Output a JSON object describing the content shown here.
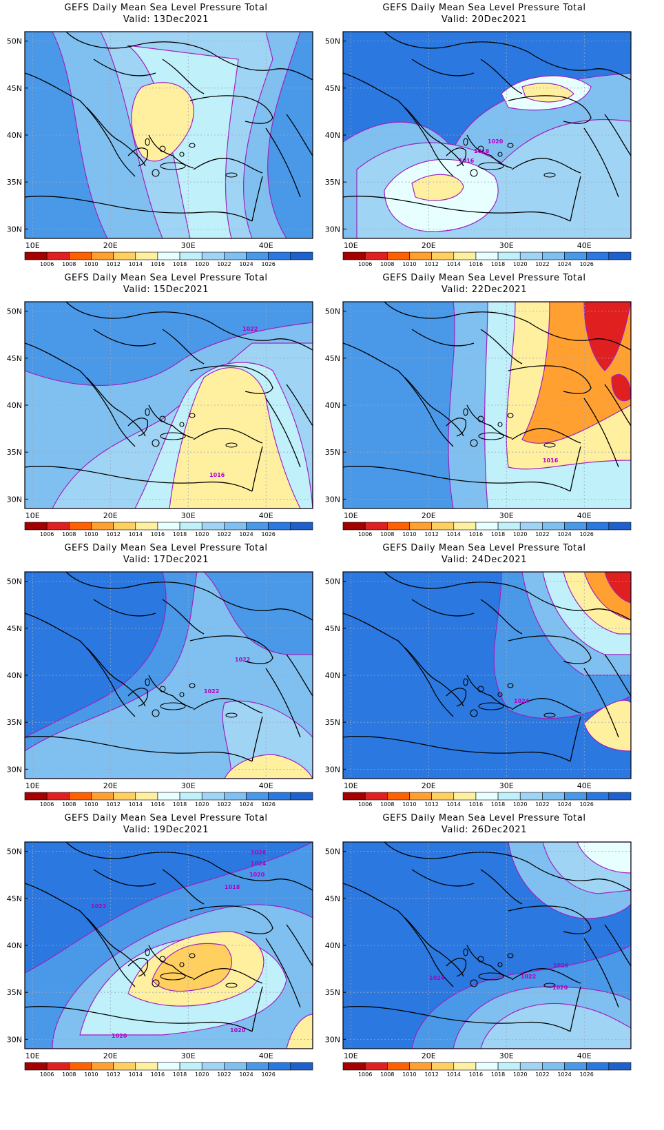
{
  "title": "GEFS Daily Mean Sea Level Pressure Total",
  "valid_prefix": "Valid:",
  "panels": [
    {
      "id": "p1",
      "date": "13Dec2021",
      "contour_labels": []
    },
    {
      "id": "p2",
      "date": "20Dec2021",
      "contour_labels": [
        "1020",
        "1018",
        "1016"
      ]
    },
    {
      "id": "p3",
      "date": "15Dec2021",
      "contour_labels": [
        "1022",
        "1016"
      ]
    },
    {
      "id": "p4",
      "date": "22Dec2021",
      "contour_labels": [
        "1016"
      ]
    },
    {
      "id": "p5",
      "date": "17Dec2021",
      "contour_labels": [
        "1022",
        "1022"
      ]
    },
    {
      "id": "p6",
      "date": "24Dec2021",
      "contour_labels": [
        "1024"
      ]
    },
    {
      "id": "p7",
      "date": "19Dec2021",
      "contour_labels": [
        "1026",
        "1024",
        "1020",
        "1018",
        "1022",
        "1020",
        "1020"
      ]
    },
    {
      "id": "p8",
      "date": "26Dec2021",
      "contour_labels": [
        "1024",
        "1026",
        "1022",
        "1020"
      ]
    }
  ],
  "lat_labels": [
    "50N",
    "45N",
    "40N",
    "35N",
    "30N"
  ],
  "lon_labels": [
    "10E",
    "20E",
    "30E",
    "40E"
  ],
  "colorbar_labels": [
    "1006",
    "1008",
    "1010",
    "1012",
    "1014",
    "1016",
    "1018",
    "1020",
    "1022",
    "1024",
    "1026"
  ],
  "colors": {
    "scale": [
      "#a50000",
      "#e02020",
      "#ff6000",
      "#ffa030",
      "#ffd060",
      "#fff0a0",
      "#e8ffff",
      "#c0f0fa",
      "#a0d4f4",
      "#80c0f0",
      "#4a98e8",
      "#2a78e0",
      "#1e60cc"
    ],
    "contour": "#a020c0",
    "coast": "#000000",
    "grid": "#9aa8c0"
  }
}
